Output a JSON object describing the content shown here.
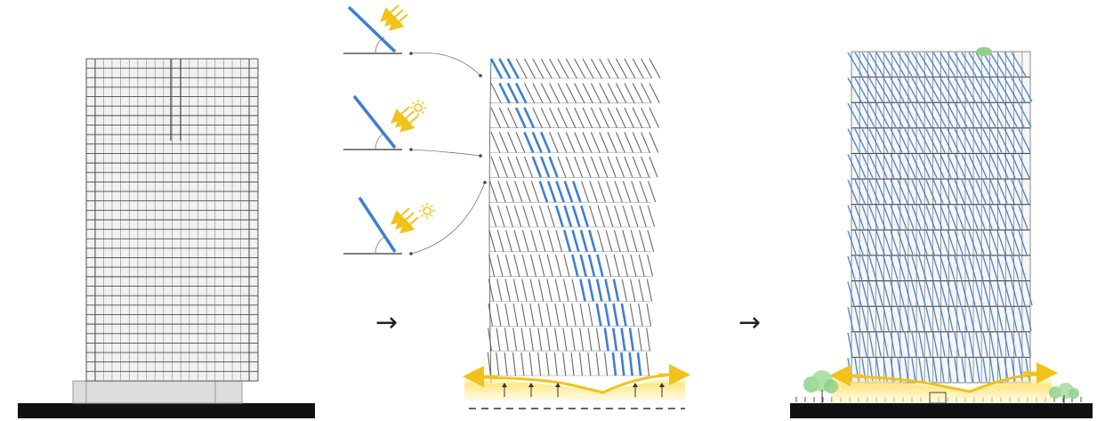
{
  "diagram": {
    "panels": [
      {
        "id": "existing-facade",
        "description_visible_text": ""
      },
      {
        "id": "fin-study",
        "description_visible_text": ""
      },
      {
        "id": "proposed-facade",
        "description_visible_text": ""
      }
    ],
    "arrows": [
      {
        "glyph": "→"
      },
      {
        "glyph": "→"
      }
    ],
    "sun_angle_studies": [
      {
        "level": "top",
        "sun_icon": false
      },
      {
        "level": "middle",
        "sun_icon": true
      },
      {
        "level": "bottom",
        "sun_icon": true
      }
    ],
    "colors": {
      "fin_blue": "#3d7fd1",
      "fin_grey": "#666666",
      "sun_yellow": "#f2c21b",
      "ground": "#111111",
      "tree_green": "#8fd18a",
      "grid_line": "#4a4a4a",
      "podium": "#dcdcdc"
    }
  }
}
